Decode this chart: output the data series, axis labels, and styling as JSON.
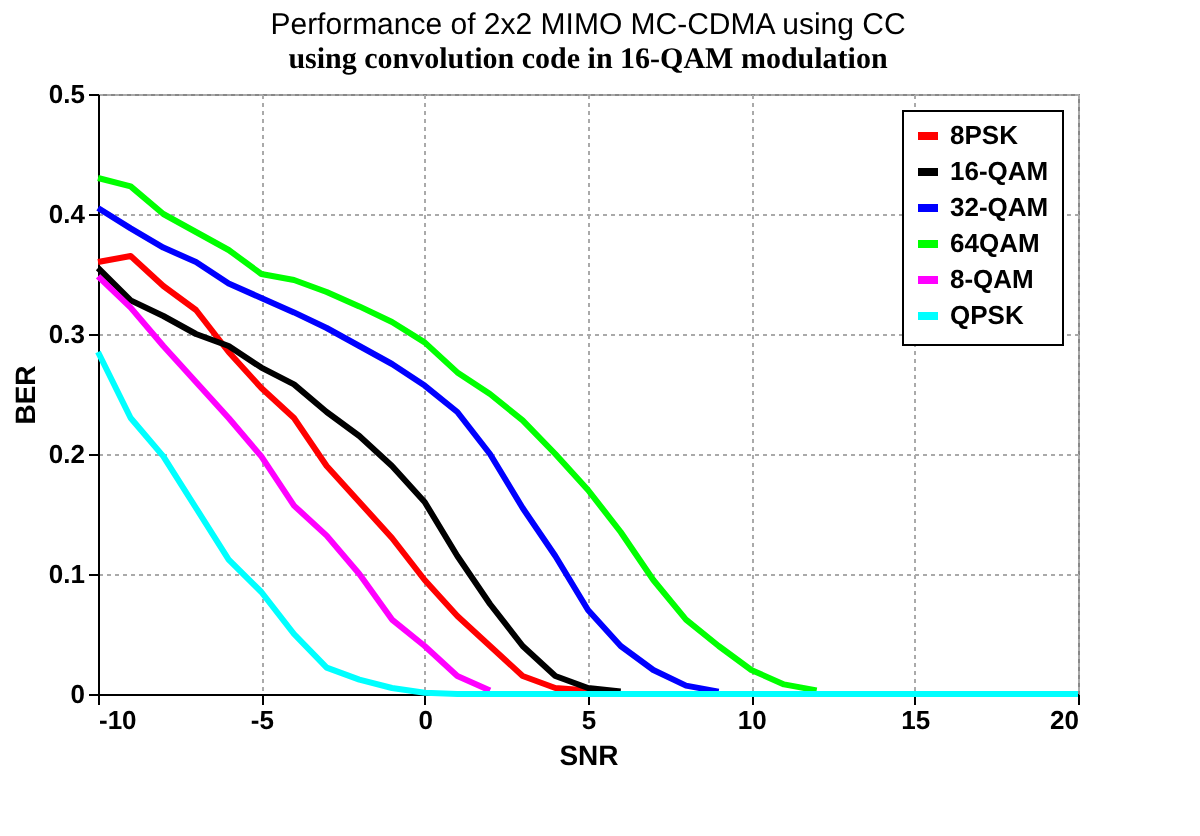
{
  "chart_data": {
    "type": "line",
    "title": "Performance of 2x2 MIMO MC-CDMA using CC",
    "annotations": [
      "using convolution code in 16-QAM modulation"
    ],
    "xlabel": "SNR",
    "ylabel": "BER",
    "x": [
      -10,
      -9,
      -8,
      -7,
      -6,
      -5,
      -4,
      -3,
      -2,
      -1,
      0,
      1,
      2,
      3,
      4,
      5,
      6,
      7,
      8,
      9,
      10,
      11,
      12,
      13,
      14,
      15,
      16,
      17,
      18,
      19,
      20
    ],
    "series": [
      {
        "name": "8PSK",
        "color": "#ff0000",
        "values": [
          0.36,
          0.365,
          0.34,
          0.32,
          0.285,
          0.255,
          0.23,
          0.19,
          0.16,
          0.13,
          0.095,
          0.065,
          0.04,
          0.015,
          0.005,
          0.003,
          null,
          null,
          null,
          null,
          null,
          null,
          null,
          null,
          null,
          null,
          null,
          null,
          null,
          null,
          null
        ]
      },
      {
        "name": "16-QAM",
        "color": "#000000",
        "values": [
          0.355,
          0.328,
          0.315,
          0.3,
          0.29,
          0.272,
          0.258,
          0.235,
          0.215,
          0.19,
          0.16,
          0.115,
          0.075,
          0.04,
          0.015,
          0.005,
          0.002,
          null,
          null,
          null,
          null,
          null,
          null,
          null,
          null,
          null,
          null,
          null,
          null,
          null,
          null
        ]
      },
      {
        "name": "32-QAM",
        "color": "#0000ff",
        "values": [
          0.405,
          0.388,
          0.372,
          0.36,
          0.342,
          0.33,
          0.318,
          0.305,
          0.29,
          0.275,
          0.257,
          0.235,
          0.2,
          0.155,
          0.115,
          0.07,
          0.04,
          0.02,
          0.007,
          0.002,
          null,
          null,
          null,
          null,
          null,
          null,
          null,
          null,
          null,
          null,
          null
        ]
      },
      {
        "name": "64QAM",
        "color": "#00ff00",
        "values": [
          0.43,
          0.423,
          0.4,
          0.385,
          0.37,
          0.35,
          0.345,
          0.335,
          0.323,
          0.31,
          0.293,
          0.268,
          0.25,
          0.228,
          0.2,
          0.17,
          0.135,
          0.095,
          0.062,
          0.04,
          0.02,
          0.008,
          0.003,
          null,
          null,
          null,
          null,
          null,
          null,
          null,
          null
        ]
      },
      {
        "name": "8-QAM",
        "color": "#ff00ff",
        "values": [
          0.348,
          0.322,
          0.29,
          0.26,
          0.23,
          0.198,
          0.157,
          0.132,
          0.1,
          0.062,
          0.04,
          0.015,
          0.003,
          null,
          null,
          null,
          null,
          null,
          null,
          null,
          null,
          null,
          null,
          null,
          null,
          null,
          null,
          null,
          null,
          null,
          null
        ]
      },
      {
        "name": "QPSK",
        "color": "#00ffff",
        "values": [
          0.285,
          0.23,
          0.198,
          0.155,
          0.112,
          0.085,
          0.05,
          0.022,
          0.012,
          0.005,
          0.001,
          0,
          0,
          0,
          0,
          0,
          0,
          0,
          0,
          0,
          0,
          0,
          0,
          0,
          0,
          0,
          0,
          0,
          0,
          0,
          0
        ]
      }
    ],
    "xlim": [
      -10,
      20
    ],
    "xticks": [
      -10,
      -5,
      0,
      5,
      10,
      15,
      20
    ],
    "ylim": [
      0,
      0.5
    ],
    "yticks": [
      {
        "value": 0,
        "label": "0"
      },
      0.1,
      0.2,
      0.3,
      0.4,
      0.5
    ],
    "grid": true,
    "legend": "top right",
    "marker": "none",
    "line_style": "solid"
  }
}
